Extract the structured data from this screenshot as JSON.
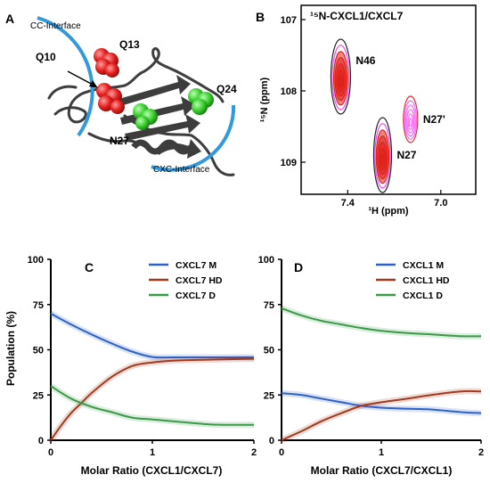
{
  "panel_labels": [
    "A",
    "B",
    "C",
    "D"
  ],
  "panel_a": {
    "interface_labels": [
      "CC-Interface",
      "CXC-Interface"
    ],
    "residue_labels": [
      "Q10",
      "Q13",
      "Q24",
      "N27"
    ],
    "colors": {
      "red_residue": "#e02020",
      "green_residue": "#33cc33",
      "arc": "#3399dd",
      "ribbon": "#3d3d3d"
    }
  },
  "chart_data": [
    {
      "type": "contour",
      "panel": "B",
      "title": "¹⁵N-CXCL1/CXCL7",
      "xlabel": "¹H (ppm)",
      "ylabel": "¹⁵N (ppm)",
      "xlim": [
        7.6,
        6.85
      ],
      "ylim": [
        106.8,
        109.45
      ],
      "x_ticks": [
        "7.4",
        "7.0"
      ],
      "y_ticks": [
        "107",
        "108",
        "109"
      ],
      "peaks": [
        {
          "label": "N46",
          "x": 7.43,
          "y": 107.8
        },
        {
          "label": "N27'",
          "x": 7.13,
          "y": 108.4
        },
        {
          "label": "N27",
          "x": 7.25,
          "y": 108.9
        }
      ]
    },
    {
      "type": "line",
      "panel": "C",
      "xlabel": "Molar Ratio (CXCL1/CXCL7)",
      "ylabel": "Population (%)",
      "xlim": [
        0,
        2
      ],
      "ylim": [
        0,
        100
      ],
      "x_ticks": [
        "0",
        "1",
        "2"
      ],
      "y_ticks": [
        "0",
        "25",
        "50",
        "75",
        "100"
      ],
      "legend_position": "top-right",
      "series": [
        {
          "name": "CXCL7 M",
          "color": "#2e62c9",
          "x": [
            0,
            0.2,
            0.4,
            0.6,
            0.8,
            1.0,
            1.2,
            1.5,
            2.0
          ],
          "y": [
            70,
            64,
            58.5,
            53.5,
            49,
            46,
            45.8,
            45.8,
            45.8
          ]
        },
        {
          "name": "CXCL7 HD",
          "color": "#a23a1e",
          "x": [
            0,
            0.1,
            0.2,
            0.3,
            0.4,
            0.6,
            0.8,
            1.0,
            1.2,
            1.5,
            2.0
          ],
          "y": [
            0,
            8,
            15,
            20.5,
            26,
            35,
            41,
            43,
            44,
            44.5,
            45
          ]
        },
        {
          "name": "CXCL7 D",
          "color": "#3a9a48",
          "x": [
            0,
            0.2,
            0.4,
            0.6,
            0.8,
            1.0,
            1.2,
            1.5,
            1.7,
            2.0
          ],
          "y": [
            30,
            23,
            18.5,
            15.5,
            12.5,
            11.5,
            10.5,
            9,
            8.5,
            8.5
          ]
        }
      ]
    },
    {
      "type": "line",
      "panel": "D",
      "xlabel": "Molar Ratio (CXCL7/CXCL1)",
      "ylabel": "",
      "xlim": [
        0,
        2
      ],
      "ylim": [
        0,
        100
      ],
      "x_ticks": [
        "0",
        "1",
        "2"
      ],
      "y_ticks": [
        "0",
        "25",
        "50",
        "75",
        "100"
      ],
      "legend_position": "top-right",
      "series": [
        {
          "name": "CXCL1 M",
          "color": "#2e62c9",
          "x": [
            0,
            0.2,
            0.4,
            0.6,
            0.8,
            1.0,
            1.2,
            1.5,
            1.8,
            2.0
          ],
          "y": [
            26,
            25,
            23,
            21,
            19,
            18,
            17.5,
            17,
            15.5,
            15
          ]
        },
        {
          "name": "CXCL1 HD",
          "color": "#a23a1e",
          "x": [
            0,
            0.2,
            0.4,
            0.6,
            0.8,
            1.0,
            1.2,
            1.5,
            1.8,
            2.0
          ],
          "y": [
            0,
            5,
            10.5,
            15,
            19,
            21,
            22.5,
            25,
            27,
            27
          ]
        },
        {
          "name": "CXCL1 D",
          "color": "#3a9a48",
          "x": [
            0,
            0.2,
            0.4,
            0.6,
            0.8,
            1.0,
            1.2,
            1.5,
            1.8,
            2.0
          ],
          "y": [
            73,
            69,
            66,
            64,
            62,
            60.5,
            59.5,
            58.5,
            57.5,
            57.5
          ]
        }
      ]
    }
  ]
}
